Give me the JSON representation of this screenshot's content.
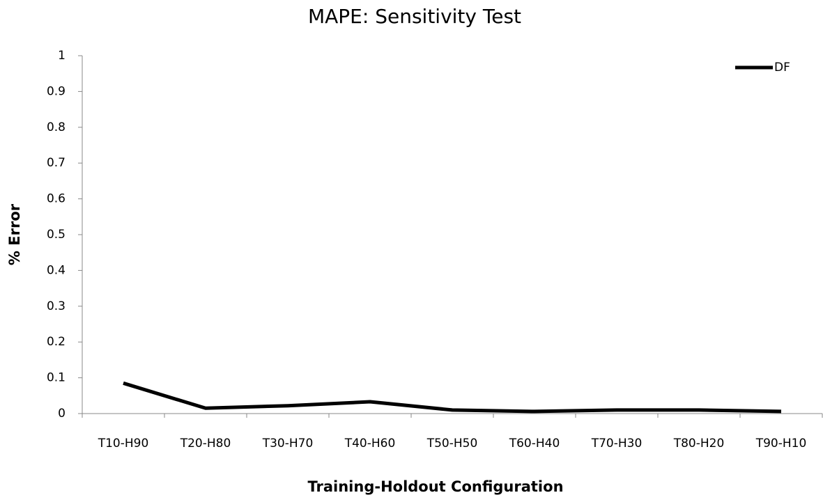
{
  "chart_data": {
    "type": "line",
    "title": "MAPE: Sensitivity Test",
    "x_label": "Training-Holdout Configuration",
    "y_label": "% Error",
    "categories": [
      "T10-H90",
      "T20-H80",
      "T30-H70",
      "T40-H60",
      "T50-H50",
      "T60-H40",
      "T70-H30",
      "T80-H20",
      "T90-H10"
    ],
    "series": [
      {
        "name": "DF",
        "color": "#000000",
        "values": [
          0.085,
          0.015,
          0.022,
          0.033,
          0.01,
          0.006,
          0.01,
          0.01,
          0.006
        ]
      }
    ],
    "ylim": [
      0,
      1
    ],
    "yticks": [
      0,
      0.1,
      0.2,
      0.3,
      0.4,
      0.5,
      0.6,
      0.7,
      0.8,
      0.9,
      1
    ],
    "grid": false,
    "legend": "top-right"
  }
}
